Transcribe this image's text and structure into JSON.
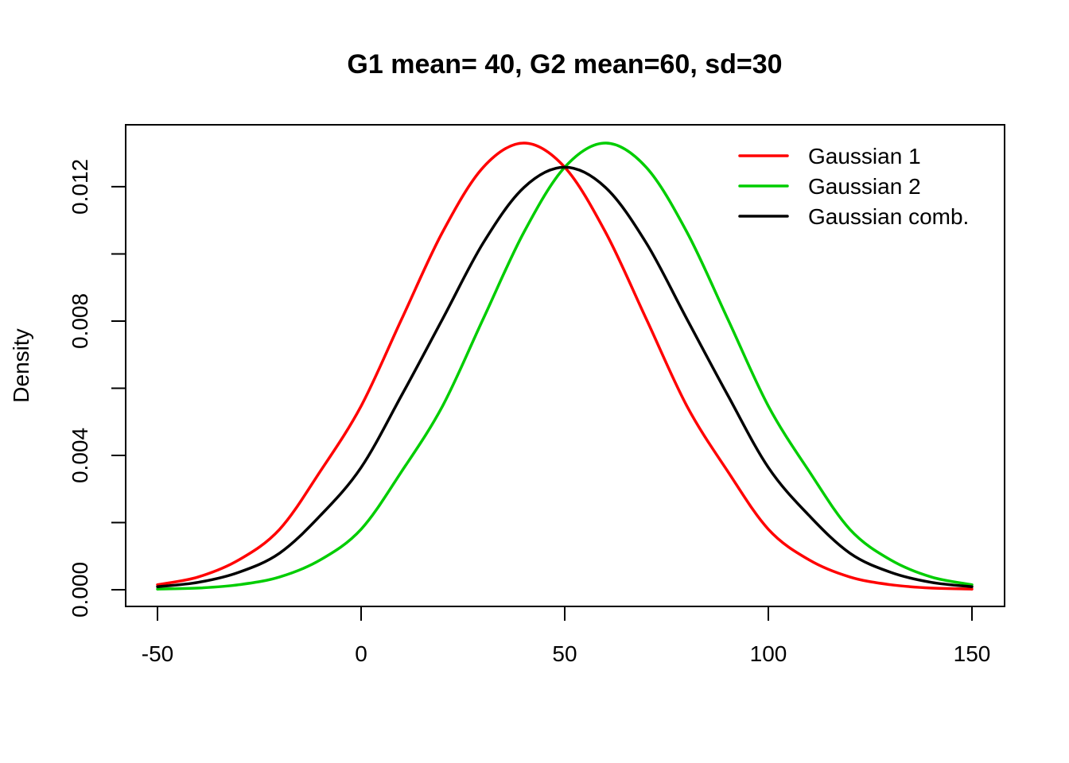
{
  "chart_data": {
    "type": "line",
    "title": "G1 mean= 40, G2 mean=60, sd=30",
    "xlabel": "",
    "ylabel": "Density",
    "xlim": [
      -50,
      150
    ],
    "ylim": [
      0,
      0.0133
    ],
    "x_ticks": [
      -50,
      0,
      50,
      100,
      150
    ],
    "x_tick_labels": [
      "-50",
      "0",
      "50",
      "100",
      "150"
    ],
    "y_ticks": [
      0,
      0.002,
      0.004,
      0.006,
      0.008,
      0.01,
      0.012
    ],
    "y_tick_labels": [
      "0.000",
      "",
      "0.004",
      "",
      "0.008",
      "",
      "0.012"
    ],
    "grid": false,
    "legend_position": "top-right",
    "x": [
      -50,
      -40,
      -30,
      -20,
      -10,
      0,
      10,
      20,
      30,
      40,
      50,
      60,
      70,
      80,
      90,
      100,
      110,
      120,
      130,
      140,
      150
    ],
    "series": [
      {
        "name": "Gaussian 1",
        "color": "#ff0000",
        "values": [
          0.00015,
          0.00038,
          0.00089,
          0.0018,
          0.00353,
          0.00547,
          0.00807,
          0.01065,
          0.01258,
          0.0133,
          0.01258,
          0.01065,
          0.00807,
          0.00547,
          0.00353,
          0.0018,
          0.00089,
          0.00038,
          0.00015,
          5e-05,
          2e-05
        ]
      },
      {
        "name": "Gaussian 2",
        "color": "#00cd00",
        "values": [
          2e-05,
          5e-05,
          0.00015,
          0.00038,
          0.00089,
          0.0018,
          0.00353,
          0.00547,
          0.00807,
          0.01065,
          0.01258,
          0.0133,
          0.01258,
          0.01065,
          0.00807,
          0.00547,
          0.00353,
          0.0018,
          0.00089,
          0.00038,
          0.00015
        ]
      },
      {
        "name": "Gaussian comb.",
        "color": "#000000",
        "values": [
          9e-05,
          0.00022,
          0.00052,
          0.00109,
          0.00221,
          0.00364,
          0.0058,
          0.00806,
          0.01033,
          0.01198,
          0.01258,
          0.01198,
          0.01033,
          0.00806,
          0.0058,
          0.00364,
          0.00221,
          0.00109,
          0.00052,
          0.00022,
          9e-05
        ]
      }
    ]
  }
}
